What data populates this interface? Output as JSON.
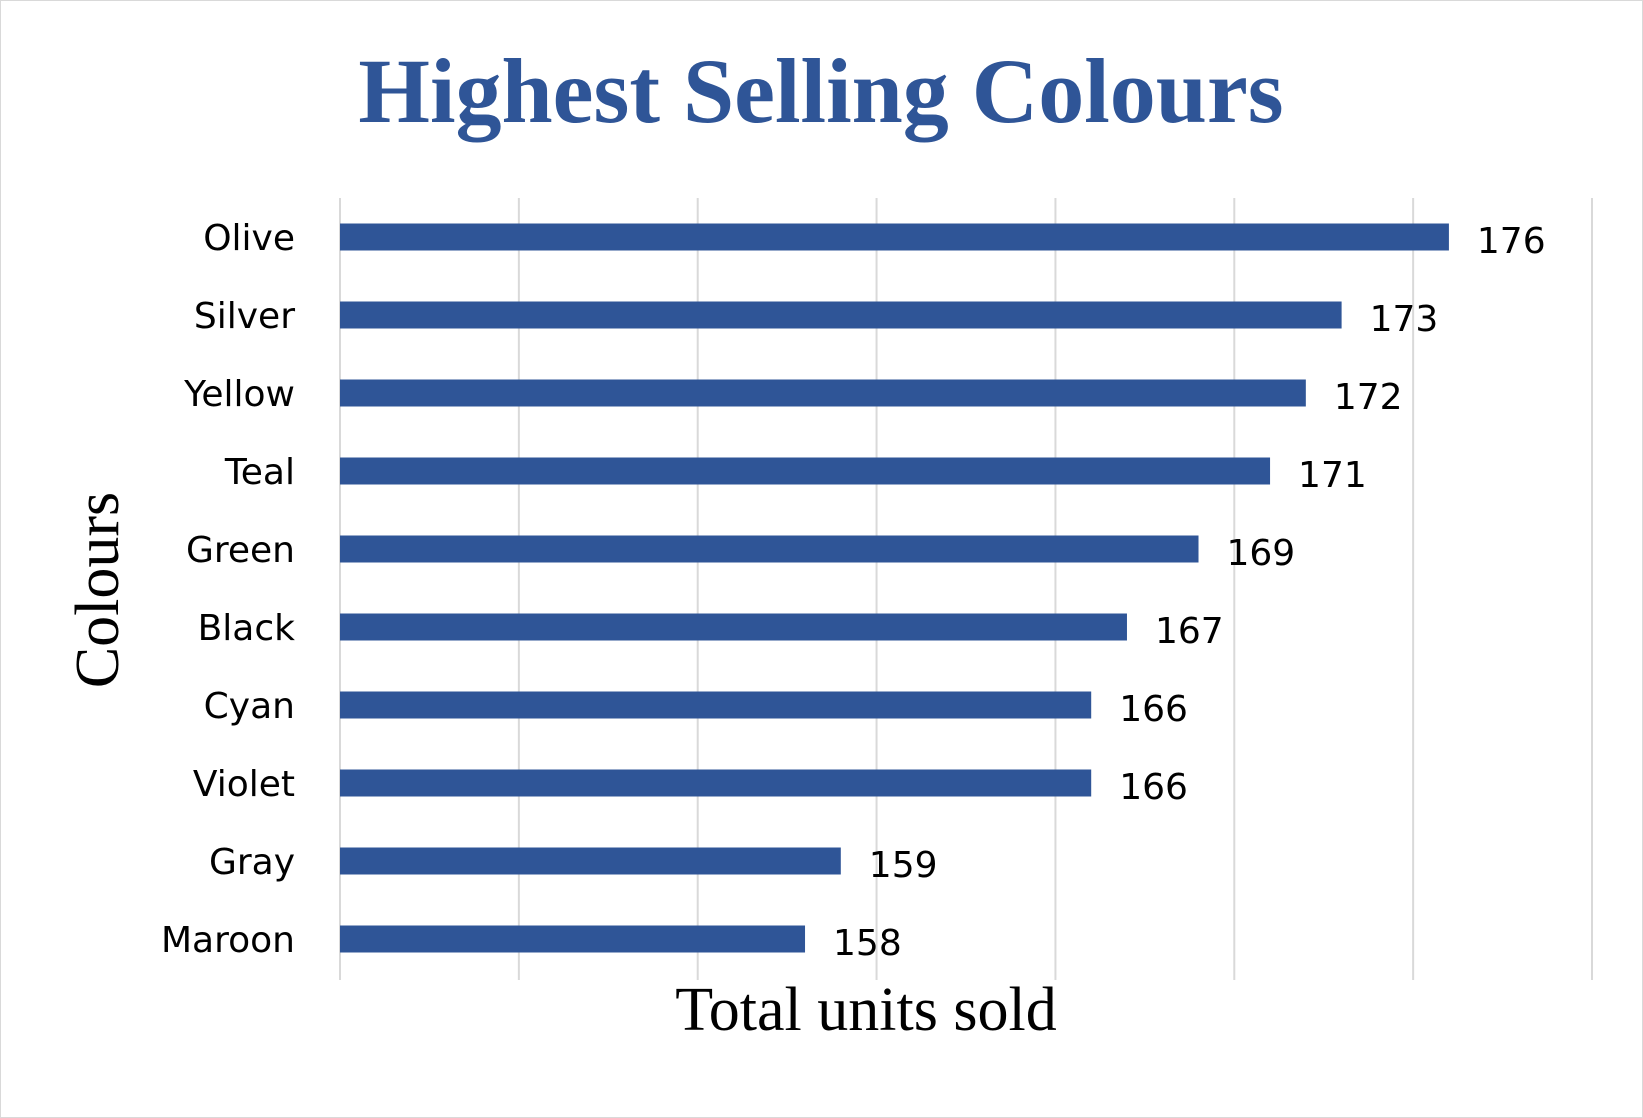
{
  "colors": {
    "bar": "#2F5597",
    "title": "#2F5597",
    "grid": "#D9D9D9",
    "border": "#D9D9D9"
  },
  "chart_data": {
    "type": "bar",
    "orientation": "horizontal",
    "title": "Highest Selling Colours",
    "xlabel": "Total units sold",
    "ylabel": "Colours",
    "categories": [
      "Olive",
      "Silver",
      "Yellow",
      "Teal",
      "Green",
      "Black",
      "Cyan",
      "Violet",
      "Gray",
      "Maroon"
    ],
    "values": [
      176,
      173,
      172,
      171,
      169,
      167,
      166,
      166,
      159,
      158
    ],
    "xlim": [
      145,
      180
    ],
    "grid": true,
    "data_labels": true,
    "legend": "none"
  }
}
